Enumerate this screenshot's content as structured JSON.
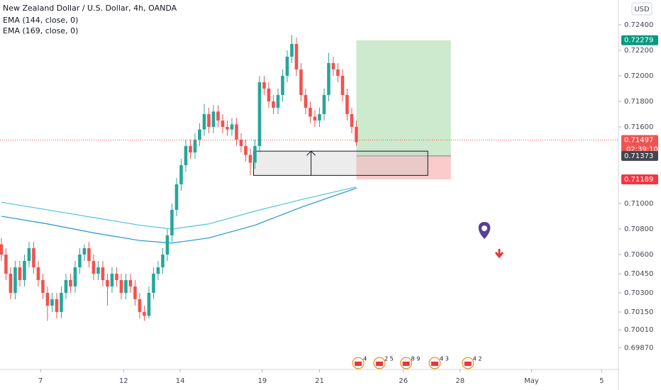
{
  "chart_data": {
    "type": "candlestick",
    "title": "New Zealand Dollar / U.S. Dollar, 4h, OANDA",
    "currency": "USD",
    "up_color": "#26a69a",
    "down_color": "#ef5350",
    "ylim": [
      0.697,
      0.72594
    ],
    "yticks": [
      {
        "value": 0.724,
        "label": "0.72400"
      },
      {
        "value": 0.722,
        "label": "0.72200"
      },
      {
        "value": 0.72,
        "label": "0.72000"
      },
      {
        "value": 0.718,
        "label": "0.71800"
      },
      {
        "value": 0.716,
        "label": "0.71600"
      },
      {
        "value": 0.71,
        "label": "0.71000"
      },
      {
        "value": 0.708,
        "label": "0.70800"
      },
      {
        "value": 0.706,
        "label": "0.70600"
      },
      {
        "value": 0.7045,
        "label": "0.70450"
      },
      {
        "value": 0.703,
        "label": "0.70300"
      },
      {
        "value": 0.7015,
        "label": "0.70150"
      },
      {
        "value": 0.7001,
        "label": "0.70010"
      },
      {
        "value": 0.6987,
        "label": "0.69870"
      }
    ],
    "xlim": [
      -0.3,
      133.85
    ],
    "xticks": [
      {
        "value": 8.5,
        "label": "7"
      },
      {
        "value": 26.5,
        "label": "12"
      },
      {
        "value": 38.8,
        "label": "14"
      },
      {
        "value": 56.6,
        "label": "19"
      },
      {
        "value": 69,
        "label": "21"
      },
      {
        "value": 87.2,
        "label": "26"
      },
      {
        "value": 99.5,
        "label": "28"
      },
      {
        "value": 115,
        "label": "May"
      },
      {
        "value": 130.2,
        "label": "5"
      }
    ],
    "candles": [
      [
        0.7068,
        0.7073,
        0.7055,
        0.706
      ],
      [
        0.706,
        0.7065,
        0.704,
        0.7045
      ],
      [
        0.7045,
        0.705,
        0.7025,
        0.703
      ],
      [
        0.703,
        0.7055,
        0.7025,
        0.705
      ],
      [
        0.705,
        0.7055,
        0.7035,
        0.704
      ],
      [
        0.704,
        0.706,
        0.7035,
        0.7055
      ],
      [
        0.7055,
        0.707,
        0.705,
        0.7065
      ],
      [
        0.7065,
        0.707,
        0.7045,
        0.705
      ],
      [
        0.705,
        0.7055,
        0.7035,
        0.704
      ],
      [
        0.704,
        0.7045,
        0.7025,
        0.703
      ],
      [
        0.703,
        0.7035,
        0.7008,
        0.702
      ],
      [
        0.702,
        0.703,
        0.7015,
        0.7025
      ],
      [
        0.7025,
        0.703,
        0.701,
        0.7015
      ],
      [
        0.7015,
        0.7035,
        0.701,
        0.703
      ],
      [
        0.703,
        0.7045,
        0.7025,
        0.704
      ],
      [
        0.704,
        0.7045,
        0.703,
        0.7035
      ],
      [
        0.7035,
        0.7055,
        0.703,
        0.705
      ],
      [
        0.705,
        0.7065,
        0.7045,
        0.706
      ],
      [
        0.706,
        0.7068,
        0.7055,
        0.7065
      ],
      [
        0.7065,
        0.707,
        0.705,
        0.7055
      ],
      [
        0.7055,
        0.706,
        0.704,
        0.7045
      ],
      [
        0.7045,
        0.7055,
        0.704,
        0.705
      ],
      [
        0.705,
        0.7055,
        0.7035,
        0.704
      ],
      [
        0.704,
        0.7045,
        0.702,
        0.7035
      ],
      [
        0.7035,
        0.705,
        0.703,
        0.7045
      ],
      [
        0.7045,
        0.705,
        0.7035,
        0.704
      ],
      [
        0.704,
        0.7045,
        0.7025,
        0.703
      ],
      [
        0.703,
        0.7045,
        0.7025,
        0.704
      ],
      [
        0.704,
        0.7045,
        0.703,
        0.7035
      ],
      [
        0.7035,
        0.704,
        0.702,
        0.7025
      ],
      [
        0.7025,
        0.703,
        0.701,
        0.7015
      ],
      [
        0.7015,
        0.702,
        0.7008,
        0.7012
      ],
      [
        0.7012,
        0.7035,
        0.701,
        0.703
      ],
      [
        0.703,
        0.705,
        0.7025,
        0.7045
      ],
      [
        0.7045,
        0.7055,
        0.704,
        0.705
      ],
      [
        0.705,
        0.7065,
        0.7045,
        0.706
      ],
      [
        0.706,
        0.708,
        0.7055,
        0.7075
      ],
      [
        0.7075,
        0.71,
        0.707,
        0.7095
      ],
      [
        0.7095,
        0.712,
        0.709,
        0.7115
      ],
      [
        0.7115,
        0.7135,
        0.711,
        0.713
      ],
      [
        0.713,
        0.715,
        0.7125,
        0.7145
      ],
      [
        0.7145,
        0.715,
        0.7135,
        0.714
      ],
      [
        0.714,
        0.7155,
        0.7135,
        0.715
      ],
      [
        0.715,
        0.7163,
        0.7145,
        0.7158
      ],
      [
        0.7158,
        0.7178,
        0.7153,
        0.717
      ],
      [
        0.717,
        0.7175,
        0.7155,
        0.716
      ],
      [
        0.716,
        0.7177,
        0.7155,
        0.7172
      ],
      [
        0.7172,
        0.7177,
        0.716,
        0.7165
      ],
      [
        0.7165,
        0.717,
        0.7155,
        0.716
      ],
      [
        0.716,
        0.7165,
        0.7153,
        0.7158
      ],
      [
        0.7158,
        0.7167,
        0.7153,
        0.7162
      ],
      [
        0.7162,
        0.7167,
        0.7145,
        0.715
      ],
      [
        0.715,
        0.7155,
        0.714,
        0.7145
      ],
      [
        0.7145,
        0.715,
        0.7133,
        0.7138
      ],
      [
        0.7138,
        0.7143,
        0.7122,
        0.7132
      ],
      [
        0.7132,
        0.715,
        0.7127,
        0.7145
      ],
      [
        0.7145,
        0.72,
        0.714,
        0.7195
      ],
      [
        0.7195,
        0.72,
        0.7185,
        0.719
      ],
      [
        0.719,
        0.7195,
        0.7175,
        0.718
      ],
      [
        0.718,
        0.7185,
        0.717,
        0.7175
      ],
      [
        0.7175,
        0.719,
        0.717,
        0.7185
      ],
      [
        0.7185,
        0.7205,
        0.718,
        0.72
      ],
      [
        0.72,
        0.722,
        0.7195,
        0.7215
      ],
      [
        0.7215,
        0.7232,
        0.721,
        0.7225
      ],
      [
        0.7225,
        0.723,
        0.72,
        0.7205
      ],
      [
        0.7205,
        0.721,
        0.718,
        0.7185
      ],
      [
        0.7185,
        0.719,
        0.717,
        0.7175
      ],
      [
        0.7175,
        0.718,
        0.7163,
        0.7168
      ],
      [
        0.7168,
        0.7173,
        0.716,
        0.7165
      ],
      [
        0.7165,
        0.7175,
        0.716,
        0.717
      ],
      [
        0.717,
        0.719,
        0.7165,
        0.7185
      ],
      [
        0.7185,
        0.7218,
        0.718,
        0.721
      ],
      [
        0.721,
        0.7215,
        0.72,
        0.7205
      ],
      [
        0.7205,
        0.721,
        0.7195,
        0.72
      ],
      [
        0.72,
        0.7205,
        0.718,
        0.7185
      ],
      [
        0.7185,
        0.719,
        0.7165,
        0.717
      ],
      [
        0.717,
        0.7175,
        0.7155,
        0.716
      ],
      [
        0.716,
        0.7165,
        0.7145,
        0.7148
      ]
    ],
    "ema": [
      {
        "name": "EMA (144, close, 0)",
        "color": "#4fc3e0",
        "x": [
          0,
          10,
          20,
          30,
          37,
          45,
          55,
          65,
          77
        ],
        "values": [
          0.7101,
          0.7095,
          0.7089,
          0.7083,
          0.708,
          0.7084,
          0.7094,
          0.7103,
          0.7113
        ]
      },
      {
        "name": "EMA (169, close, 0)",
        "color": "#2196c8",
        "x": [
          0,
          10,
          20,
          30,
          37,
          45,
          55,
          65,
          77
        ],
        "values": [
          0.709,
          0.7084,
          0.7077,
          0.7071,
          0.7069,
          0.7073,
          0.7083,
          0.7097,
          0.7112
        ]
      }
    ],
    "last_price": 0.71497,
    "countdown": "02:39:10",
    "position": {
      "target": 0.72279,
      "entry": 0.71373,
      "stop": 0.71189,
      "x": [
        77,
        97.5
      ]
    },
    "zone": {
      "top": 0.7141,
      "bottom": 0.7122,
      "x": [
        54.7,
        92.5
      ]
    },
    "events": [
      {
        "x": 77.4,
        "label": "4"
      },
      {
        "x": 82,
        "label": "2 5"
      },
      {
        "x": 87.8,
        "label": "8 9"
      },
      {
        "x": 94,
        "label": "4 3"
      },
      {
        "x": 101.2,
        "label": "4 2"
      }
    ]
  }
}
